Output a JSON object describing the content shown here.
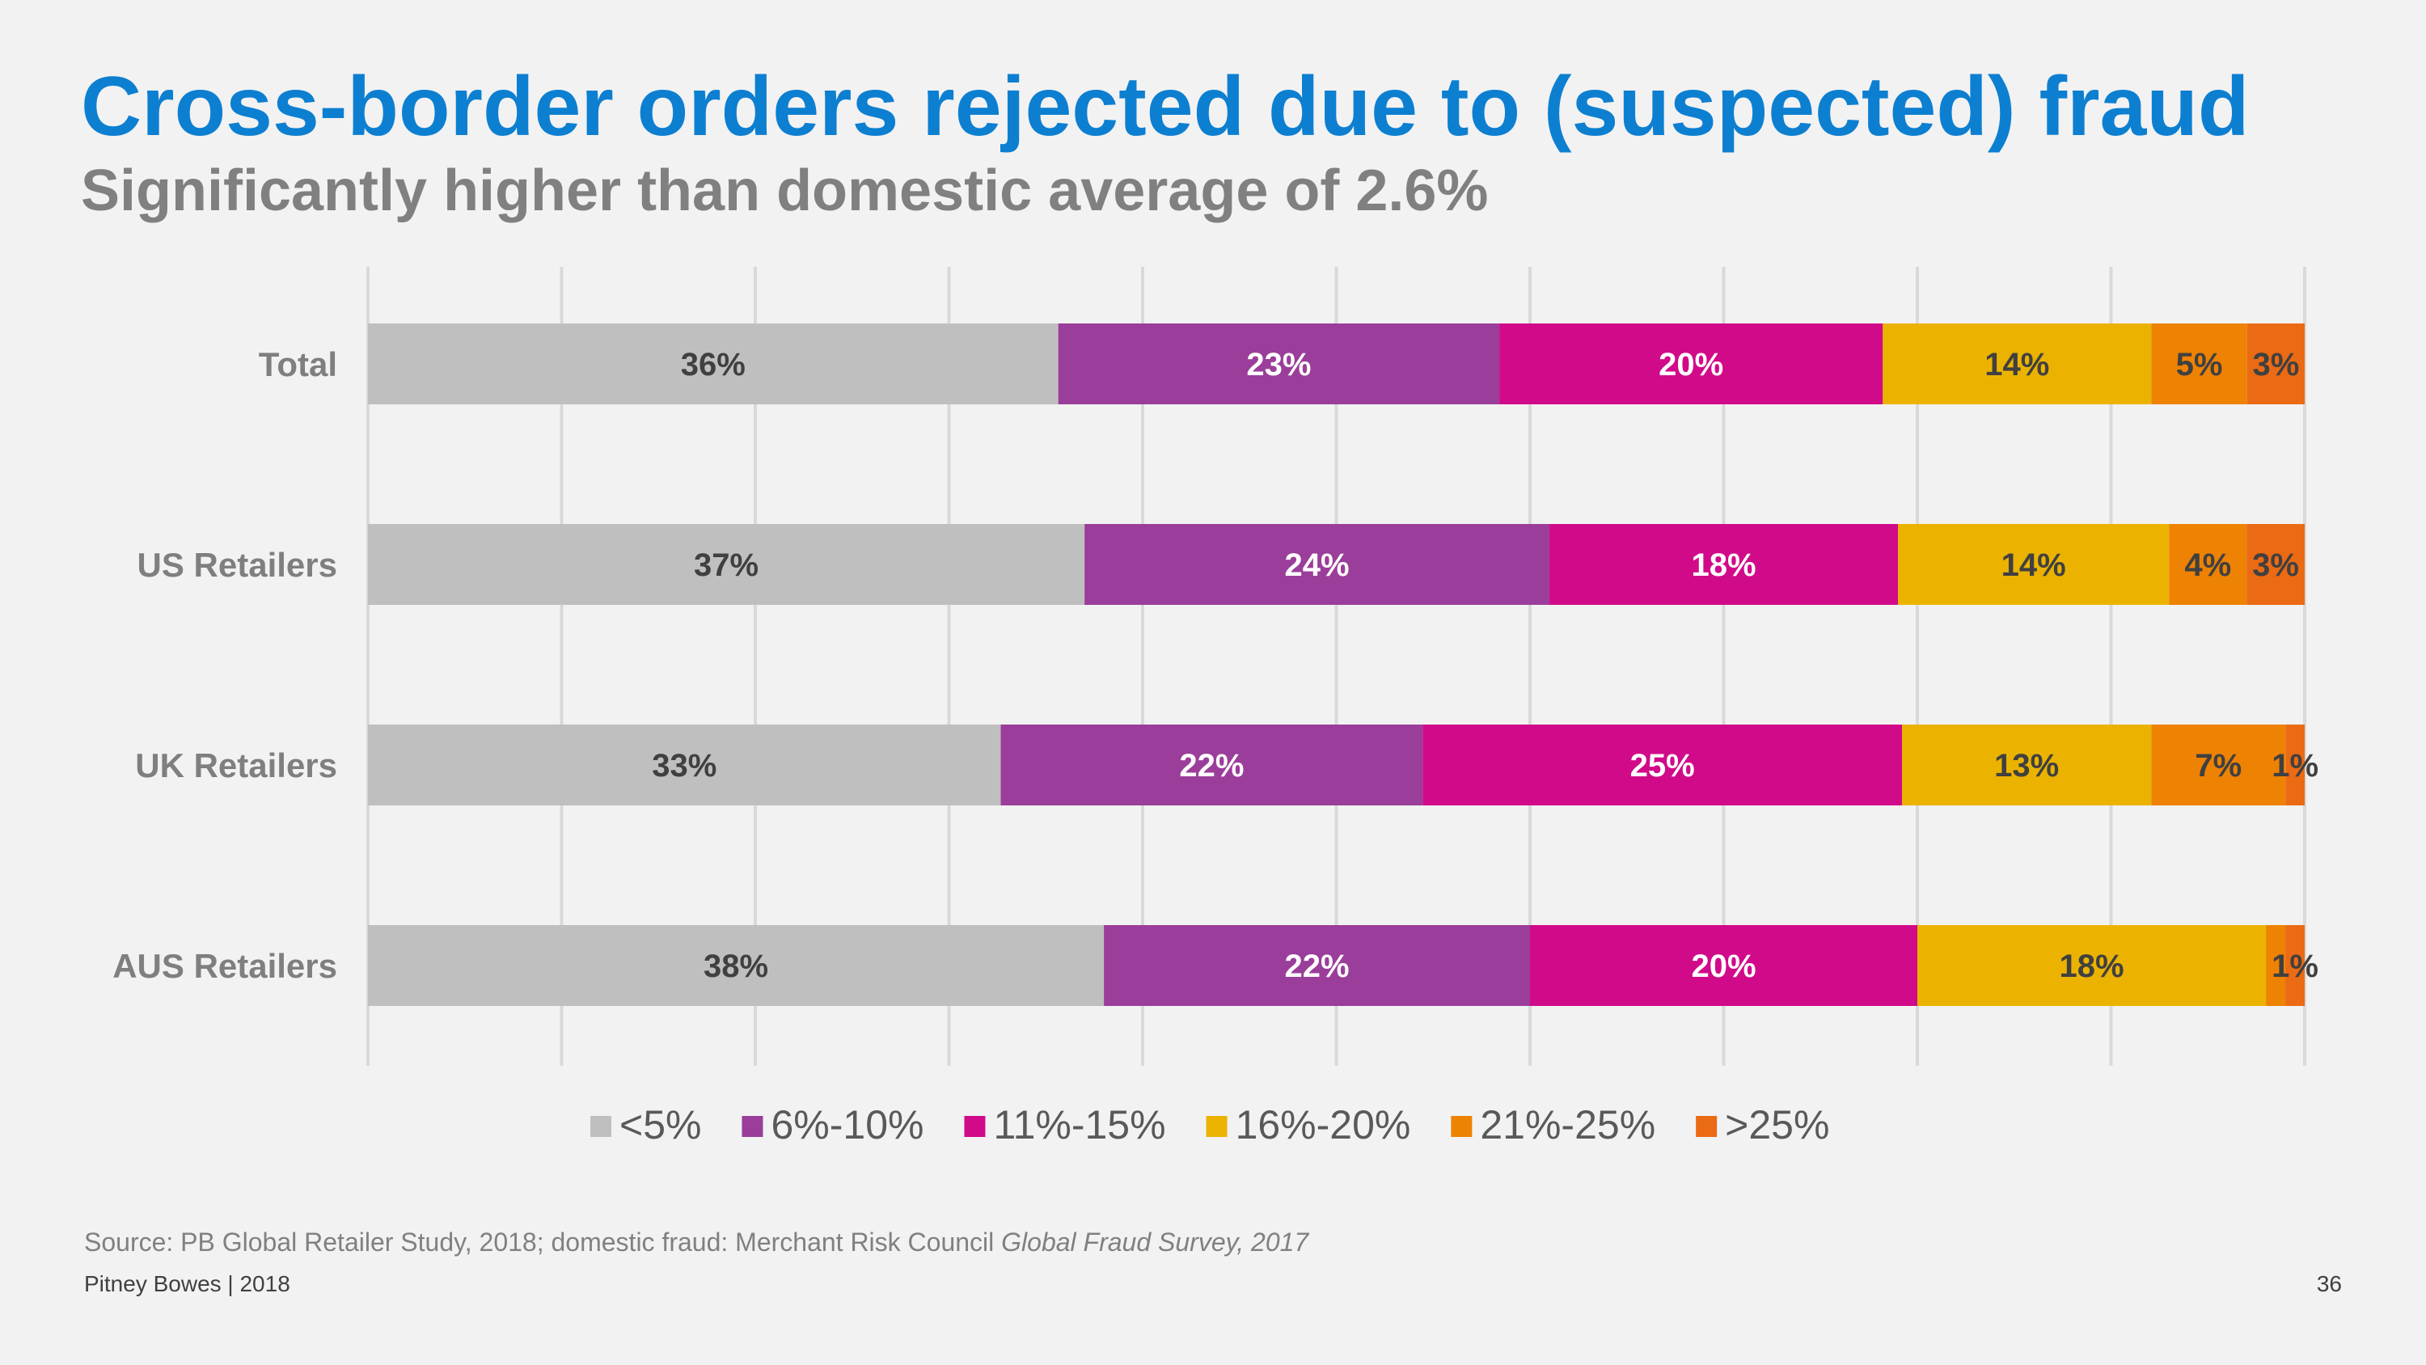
{
  "slide": {
    "title": "Cross-border orders rejected due to (suspected) fraud",
    "subtitle": "Significantly higher than domestic average of 2.6%",
    "source_prefix": "Source: PB Global Retailer Study, 2018; domestic fraud: Merchant Risk Council ",
    "source_italic": "Global Fraud Survey, 2017",
    "footer": "Pitney Bowes | 2018",
    "page_number": "36"
  },
  "chart_data": {
    "type": "bar",
    "orientation": "horizontal",
    "stacked": true,
    "normalized": true,
    "categories": [
      "Total",
      "US Retailers",
      "UK Retailers",
      "AUS Retailers"
    ],
    "series": [
      {
        "name": "<5%",
        "color": "#bfbfbf",
        "label_color": "#404040",
        "values": [
          36,
          37,
          33,
          38
        ],
        "labels": [
          "36%",
          "37%",
          "33%",
          "38%"
        ]
      },
      {
        "name": "6%-10%",
        "color": "#9b3d9a",
        "label_color": "#ffffff",
        "values": [
          23,
          24,
          22,
          22
        ],
        "labels": [
          "23%",
          "24%",
          "22%",
          "22%"
        ]
      },
      {
        "name": "11%-15%",
        "color": "#d10a8a",
        "label_color": "#ffffff",
        "values": [
          20,
          18,
          25,
          20
        ],
        "labels": [
          "20%",
          "18%",
          "25%",
          "20%"
        ]
      },
      {
        "name": "16%-20%",
        "color": "#ebb300",
        "label_color": "#404040",
        "values": [
          14,
          14,
          13,
          18
        ],
        "labels": [
          "14%",
          "14%",
          "13%",
          "18%"
        ]
      },
      {
        "name": "21%-25%",
        "color": "#ee8203",
        "label_color": "#404040",
        "values": [
          5,
          4,
          7,
          1
        ],
        "labels": [
          "5%",
          "4%",
          "7%",
          ""
        ]
      },
      {
        "name": ">25%",
        "color": "#eb6a14",
        "label_color": "#404040",
        "values": [
          3,
          3,
          1,
          1
        ],
        "labels": [
          "3%",
          "3%",
          "1%",
          "1%"
        ]
      }
    ],
    "xlim": [
      0,
      100
    ],
    "grid": true,
    "legend": "bottom"
  }
}
